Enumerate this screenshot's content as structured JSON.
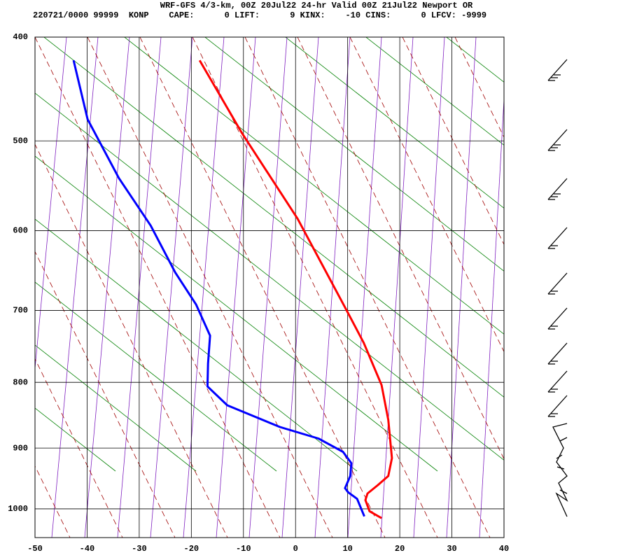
{
  "chart_data": {
    "type": "skewt",
    "title": "WRF-GFS 4/3-km, 00Z 20Jul22 24-hr Valid 00Z 21Jul22 Newport OR",
    "subtitle": "220721/0000 99999  KONP    CAPE:      0 LIFT:      9 KINX:    -10 CINS:      0 LFCV: -9999",
    "xlim": [
      -50,
      40
    ],
    "xticks": [
      -50,
      -40,
      -30,
      -20,
      -10,
      0,
      10,
      20,
      30,
      40
    ],
    "ylim": [
      400,
      1050
    ],
    "yticks": [
      400,
      500,
      600,
      700,
      800,
      900,
      1000
    ],
    "grid": true,
    "series": [
      {
        "color": "#ff0000",
        "x": [
          -18.4,
          -10.4,
          0.4,
          9.8,
          13.1,
          16.5,
          17.8,
          18.5,
          17.8,
          15.8,
          13.8,
          13.4,
          14.2,
          16.5
        ],
        "y": [
          421,
          491,
          586,
          700,
          744,
          804,
          856,
          916,
          945,
          960,
          974,
          985,
          1004,
          1016
        ]
      },
      {
        "color": "#0000ff",
        "x": [
          -42.6,
          -39.9,
          -33.9,
          -27.8,
          -23.1,
          -19.1,
          -16.4,
          -16.8,
          -16.9,
          -13.1,
          -3,
          4.4,
          9.1,
          10.7,
          10.5,
          9.5,
          10.1,
          11.8,
          13.2
        ],
        "y": [
          421,
          478,
          540,
          594,
          651,
          692,
          734,
          773,
          806,
          834,
          867,
          885,
          906,
          924,
          945,
          965,
          972,
          983,
          1013
        ]
      }
    ]
  }
}
